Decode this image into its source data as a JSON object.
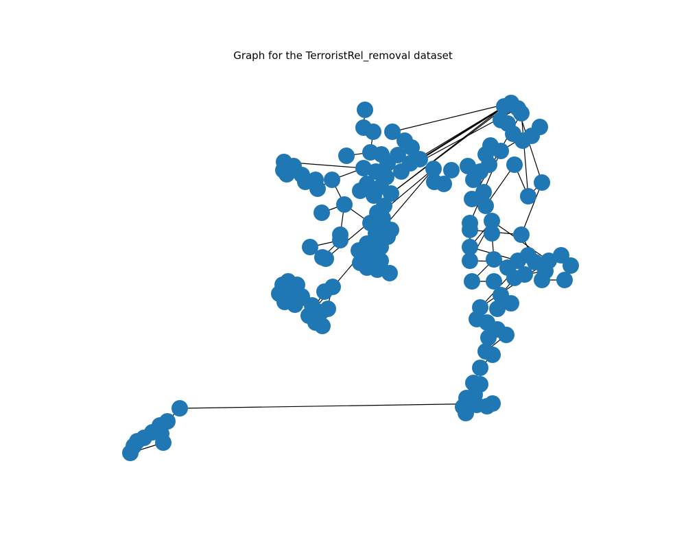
{
  "figure": {
    "title": "Graph for the TerroristRel_removal dataset"
  },
  "style": {
    "node_color": "#1f77b4",
    "edge_color": "#000000",
    "background": "#ffffff"
  },
  "chart_data": {
    "type": "network",
    "title": "Graph for the TerroristRel_removal dataset",
    "axes_visible": false,
    "node_labels_visible": false
  }
}
